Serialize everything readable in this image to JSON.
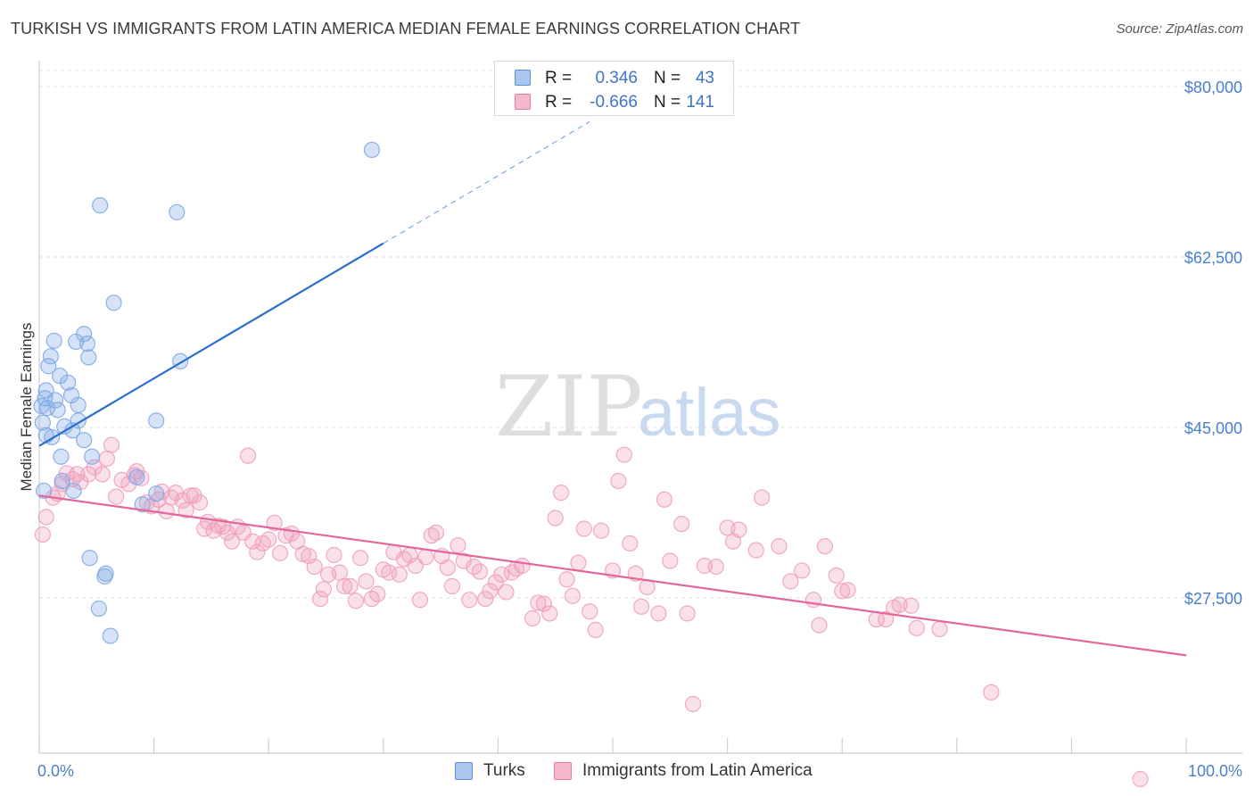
{
  "header": {
    "title": "TURKISH VS IMMIGRANTS FROM LATIN AMERICA MEDIAN FEMALE EARNINGS CORRELATION CHART",
    "source": "Source: ZipAtlas.com"
  },
  "watermark": {
    "zip": "ZIP",
    "atlas": "atlas"
  },
  "legend": {
    "rows": [
      {
        "r_label": "R =",
        "r_value": "0.346",
        "n_label": "N =",
        "n_value": "43",
        "color": "#a9c6f0",
        "border": "#5d8fd6"
      },
      {
        "r_label": "R =",
        "r_value": "-0.666",
        "n_label": "N =",
        "n_value": "141",
        "color": "#f6b8cc",
        "border": "#e27fa0"
      }
    ]
  },
  "bottom_legend": {
    "items": [
      {
        "label": "Turks",
        "color": "#a9c6f0",
        "border": "#5d8fd6"
      },
      {
        "label": "Immigrants from Latin America",
        "color": "#f6b8cc",
        "border": "#e27fa0"
      }
    ]
  },
  "chart_data": {
    "type": "scatter",
    "title": "TURKISH VS IMMIGRANTS FROM LATIN AMERICA MEDIAN FEMALE EARNINGS CORRELATION CHART",
    "xlabel": "",
    "ylabel": "Median Female Earnings",
    "xlim": [
      0,
      100
    ],
    "ylim": [
      7500,
      87500
    ],
    "x_tick_labels": [
      "0.0%",
      "100.0%"
    ],
    "y_ticks": [
      27500,
      45000,
      62500,
      80000
    ],
    "y_tick_labels": [
      "$27,500",
      "$45,000",
      "$62,500",
      "$80,000"
    ],
    "grid": true,
    "legend_position": "top-center",
    "series": [
      {
        "name": "Turks",
        "color": "#7ea9e6",
        "line_color": "#2a6fcf",
        "trend": {
          "x0": 0,
          "y0": 43100,
          "x1": 30,
          "y1": 63900,
          "dash_x1": 48,
          "dash_y1": 76400
        },
        "points": [
          [
            0.3,
            45500
          ],
          [
            0.4,
            38500
          ],
          [
            0.5,
            48000
          ],
          [
            0.6,
            48800
          ],
          [
            0.7,
            47000
          ],
          [
            0.8,
            51300
          ],
          [
            1.0,
            52300
          ],
          [
            1.1,
            44000
          ],
          [
            1.4,
            47800
          ],
          [
            1.6,
            46800
          ],
          [
            1.8,
            50300
          ],
          [
            1.9,
            42000
          ],
          [
            2.0,
            39500
          ],
          [
            2.2,
            45100
          ],
          [
            2.5,
            49600
          ],
          [
            2.8,
            48300
          ],
          [
            2.9,
            44700
          ],
          [
            3.0,
            38500
          ],
          [
            3.2,
            53800
          ],
          [
            3.4,
            45700
          ],
          [
            3.4,
            47300
          ],
          [
            3.9,
            54600
          ],
          [
            3.9,
            43700
          ],
          [
            4.2,
            53600
          ],
          [
            4.3,
            52200
          ],
          [
            4.4,
            31600
          ],
          [
            4.6,
            42000
          ],
          [
            5.2,
            26400
          ],
          [
            5.3,
            67800
          ],
          [
            5.7,
            29700
          ],
          [
            5.8,
            30000
          ],
          [
            6.2,
            23600
          ],
          [
            6.5,
            57800
          ],
          [
            8.5,
            39900
          ],
          [
            9.0,
            37100
          ],
          [
            10.2,
            38200
          ],
          [
            10.2,
            45700
          ],
          [
            12.0,
            67100
          ],
          [
            12.3,
            51800
          ],
          [
            29.0,
            73500
          ],
          [
            0.2,
            47200
          ],
          [
            0.6,
            44200
          ],
          [
            1.3,
            53900
          ]
        ]
      },
      {
        "name": "Immigrants from Latin America",
        "color": "#f0a0bc",
        "line_color": "#e2679a",
        "trend": {
          "x0": 0,
          "y0": 38000,
          "x1": 100,
          "y1": 21600
        },
        "points": [
          [
            0.3,
            34000
          ],
          [
            0.6,
            35800
          ],
          [
            1.2,
            37800
          ],
          [
            1.6,
            38200
          ],
          [
            2.0,
            39200
          ],
          [
            2.4,
            40300
          ],
          [
            2.9,
            39700
          ],
          [
            3.3,
            40200
          ],
          [
            3.6,
            39400
          ],
          [
            4.3,
            40200
          ],
          [
            4.8,
            40900
          ],
          [
            5.5,
            40200
          ],
          [
            5.9,
            41800
          ],
          [
            6.3,
            43200
          ],
          [
            6.7,
            37900
          ],
          [
            7.2,
            39600
          ],
          [
            7.8,
            39200
          ],
          [
            8.3,
            40100
          ],
          [
            8.5,
            40500
          ],
          [
            8.9,
            39800
          ],
          [
            9.4,
            37300
          ],
          [
            9.8,
            36900
          ],
          [
            10.4,
            37600
          ],
          [
            10.7,
            38400
          ],
          [
            11.1,
            36400
          ],
          [
            11.5,
            37800
          ],
          [
            11.9,
            38300
          ],
          [
            12.5,
            37500
          ],
          [
            12.8,
            36500
          ],
          [
            13.2,
            38000
          ],
          [
            13.5,
            38000
          ],
          [
            14.0,
            37300
          ],
          [
            14.4,
            34600
          ],
          [
            14.7,
            35300
          ],
          [
            15.2,
            34400
          ],
          [
            15.6,
            34900
          ],
          [
            16.0,
            34800
          ],
          [
            16.4,
            34200
          ],
          [
            16.8,
            33300
          ],
          [
            17.3,
            34800
          ],
          [
            17.8,
            34200
          ],
          [
            18.2,
            42100
          ],
          [
            18.6,
            33300
          ],
          [
            19.0,
            32200
          ],
          [
            19.5,
            33100
          ],
          [
            20.0,
            33500
          ],
          [
            20.5,
            35200
          ],
          [
            21.0,
            32100
          ],
          [
            21.5,
            33900
          ],
          [
            22.0,
            34100
          ],
          [
            22.5,
            33300
          ],
          [
            23.0,
            32000
          ],
          [
            23.5,
            31800
          ],
          [
            24.0,
            30700
          ],
          [
            24.5,
            27400
          ],
          [
            24.8,
            28400
          ],
          [
            25.2,
            29900
          ],
          [
            25.7,
            31900
          ],
          [
            26.2,
            30100
          ],
          [
            26.6,
            28700
          ],
          [
            27.1,
            28700
          ],
          [
            27.6,
            27200
          ],
          [
            28.0,
            31600
          ],
          [
            28.5,
            29200
          ],
          [
            29.0,
            27400
          ],
          [
            29.5,
            27900
          ],
          [
            30.0,
            30400
          ],
          [
            30.5,
            30100
          ],
          [
            30.9,
            32200
          ],
          [
            31.4,
            29900
          ],
          [
            31.8,
            31500
          ],
          [
            32.3,
            31900
          ],
          [
            32.8,
            30800
          ],
          [
            33.2,
            27300
          ],
          [
            33.7,
            31700
          ],
          [
            34.2,
            33900
          ],
          [
            34.6,
            34200
          ],
          [
            35.1,
            31800
          ],
          [
            35.6,
            30600
          ],
          [
            36.0,
            28700
          ],
          [
            36.5,
            32900
          ],
          [
            37.0,
            31300
          ],
          [
            37.5,
            27300
          ],
          [
            37.9,
            30700
          ],
          [
            38.4,
            30200
          ],
          [
            38.9,
            27400
          ],
          [
            39.3,
            28200
          ],
          [
            39.8,
            29100
          ],
          [
            40.3,
            29900
          ],
          [
            40.7,
            28100
          ],
          [
            41.2,
            30100
          ],
          [
            41.6,
            30500
          ],
          [
            42.1,
            30800
          ],
          [
            43.0,
            25400
          ],
          [
            43.5,
            27000
          ],
          [
            44.0,
            26900
          ],
          [
            44.5,
            25900
          ],
          [
            45.0,
            35700
          ],
          [
            45.5,
            38300
          ],
          [
            46.0,
            29400
          ],
          [
            46.5,
            27700
          ],
          [
            47.0,
            31100
          ],
          [
            47.5,
            34600
          ],
          [
            48.0,
            26100
          ],
          [
            48.5,
            24200
          ],
          [
            49.0,
            34400
          ],
          [
            50.0,
            30300
          ],
          [
            50.5,
            39500
          ],
          [
            51.0,
            42200
          ],
          [
            51.5,
            33100
          ],
          [
            52.0,
            30000
          ],
          [
            52.5,
            26600
          ],
          [
            53.0,
            28600
          ],
          [
            54.0,
            25900
          ],
          [
            54.5,
            37600
          ],
          [
            55.0,
            31300
          ],
          [
            56.0,
            35100
          ],
          [
            56.5,
            25900
          ],
          [
            57.0,
            16600
          ],
          [
            58.0,
            30800
          ],
          [
            59.0,
            30700
          ],
          [
            60.0,
            34700
          ],
          [
            60.5,
            33300
          ],
          [
            61.0,
            34500
          ],
          [
            62.5,
            32400
          ],
          [
            63.0,
            37800
          ],
          [
            64.5,
            32800
          ],
          [
            65.5,
            29200
          ],
          [
            66.5,
            30300
          ],
          [
            67.5,
            27300
          ],
          [
            68.0,
            24700
          ],
          [
            68.5,
            32800
          ],
          [
            69.5,
            29800
          ],
          [
            70.0,
            28200
          ],
          [
            70.5,
            28300
          ],
          [
            73.0,
            25300
          ],
          [
            73.8,
            25300
          ],
          [
            74.5,
            26500
          ],
          [
            75.0,
            26800
          ],
          [
            76.0,
            26700
          ],
          [
            76.5,
            24400
          ],
          [
            78.5,
            24300
          ],
          [
            83.0,
            17800
          ],
          [
            96.0,
            8900
          ]
        ]
      }
    ]
  }
}
